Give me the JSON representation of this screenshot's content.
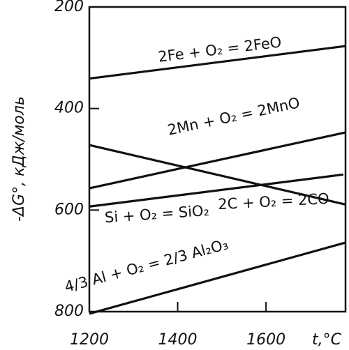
{
  "chart_data": {
    "type": "line",
    "y_label": "-ΔG°, кДж/моль",
    "x_label": "t,°C",
    "xlim": [
      1200,
      1780
    ],
    "xticks": [
      1200,
      1400,
      1600
    ],
    "ylim": [
      800,
      200
    ],
    "yticks": [
      200,
      400,
      600,
      800
    ],
    "series": [
      {
        "name": "2Fe + O₂ = 2FeO",
        "color": "#111111",
        "x": [
          1200,
          1780
        ],
        "values": [
          341,
          277
        ]
      },
      {
        "name": "2Mn + O₂ = 2MnO",
        "color": "#111111",
        "x": [
          1200,
          1780
        ],
        "values": [
          557,
          447
        ]
      },
      {
        "name": "Si + O₂ = SiO₂",
        "color": "#111111",
        "x": [
          1200,
          1775
        ],
        "values": [
          593,
          530
        ]
      },
      {
        "name": "2C + O₂ = 2CO",
        "color": "#111111",
        "x": [
          1200,
          1780
        ],
        "values": [
          472,
          589
        ]
      },
      {
        "name": "4/3 Al + O₂ = 2/3 Al₂O₃",
        "color": "#111111",
        "x": [
          1200,
          1780
        ],
        "values": [
          804,
          664
        ]
      }
    ]
  }
}
